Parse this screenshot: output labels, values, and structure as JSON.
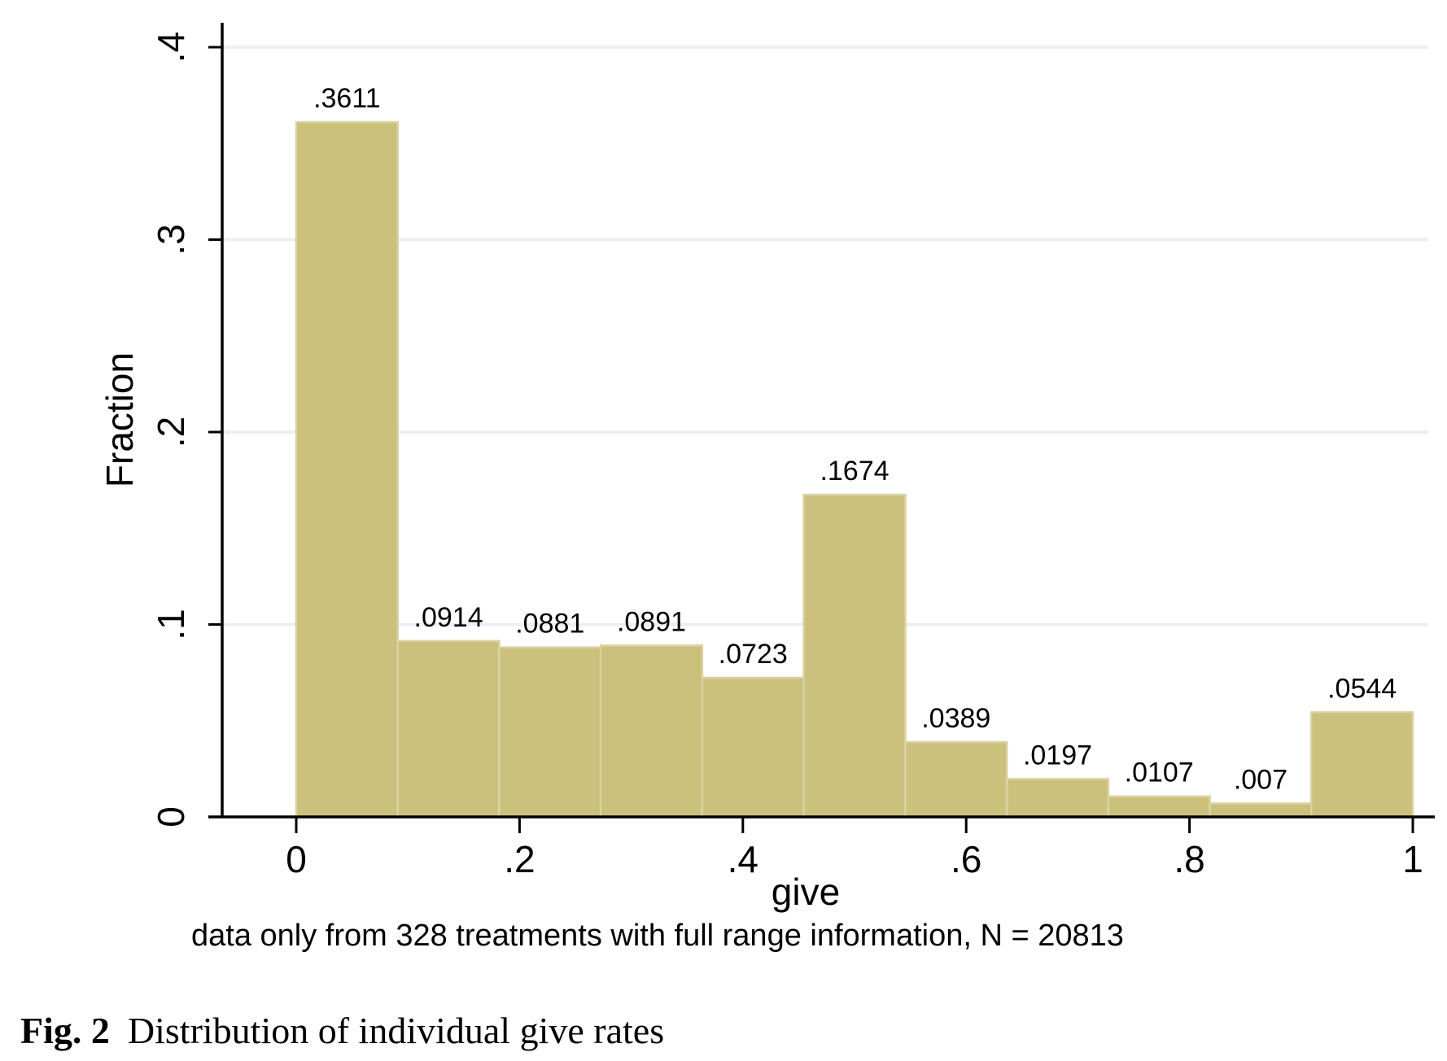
{
  "figure": {
    "caption": {
      "label": "Fig. 2",
      "title": "Distribution of individual give rates"
    }
  },
  "chart_data": {
    "type": "bar",
    "subtype": "histogram",
    "title": "",
    "xlabel": "give",
    "ylabel": "Fraction",
    "note": "data only from 328 treatments with full range information, N = 20813",
    "xlim": [
      0,
      1
    ],
    "ylim": [
      0,
      0.4
    ],
    "n_bins": 11,
    "bin_width": 0.0909,
    "grid": true,
    "legend": "none",
    "bins": [
      {
        "x0": 0.0,
        "x1": 0.0909,
        "value": 0.3611,
        "label": ".3611"
      },
      {
        "x0": 0.0909,
        "x1": 0.1818,
        "value": 0.0914,
        "label": ".0914"
      },
      {
        "x0": 0.1818,
        "x1": 0.2727,
        "value": 0.0881,
        "label": ".0881"
      },
      {
        "x0": 0.2727,
        "x1": 0.3636,
        "value": 0.0891,
        "label": ".0891"
      },
      {
        "x0": 0.3636,
        "x1": 0.4545,
        "value": 0.0723,
        "label": ".0723"
      },
      {
        "x0": 0.4545,
        "x1": 0.5455,
        "value": 0.1674,
        "label": ".1674"
      },
      {
        "x0": 0.5455,
        "x1": 0.6364,
        "value": 0.0389,
        "label": ".0389"
      },
      {
        "x0": 0.6364,
        "x1": 0.7273,
        "value": 0.0197,
        "label": ".0197"
      },
      {
        "x0": 0.7273,
        "x1": 0.8182,
        "value": 0.0107,
        "label": ".0107"
      },
      {
        "x0": 0.8182,
        "x1": 0.9091,
        "value": 0.007,
        "label": ".007"
      },
      {
        "x0": 0.9091,
        "x1": 1.0,
        "value": 0.0544,
        "label": ".0544"
      }
    ],
    "x_ticks": [
      {
        "v": 0.0,
        "label": "0"
      },
      {
        "v": 0.2,
        "label": ".2"
      },
      {
        "v": 0.4,
        "label": ".4"
      },
      {
        "v": 0.6,
        "label": ".6"
      },
      {
        "v": 0.8,
        "label": ".8"
      },
      {
        "v": 1.0,
        "label": "1"
      }
    ],
    "y_ticks": [
      {
        "v": 0.0,
        "label": "0"
      },
      {
        "v": 0.1,
        "label": ".1"
      },
      {
        "v": 0.2,
        "label": ".2"
      },
      {
        "v": 0.3,
        "label": ".3"
      },
      {
        "v": 0.4,
        "label": ".4"
      }
    ],
    "colors": {
      "bar_fill": "#CBC17C",
      "bar_border": "#D9D2A2",
      "gridline": "#E9EFF4",
      "axis": "#000000",
      "text": "#000000",
      "background": "#FFFFFF"
    }
  }
}
